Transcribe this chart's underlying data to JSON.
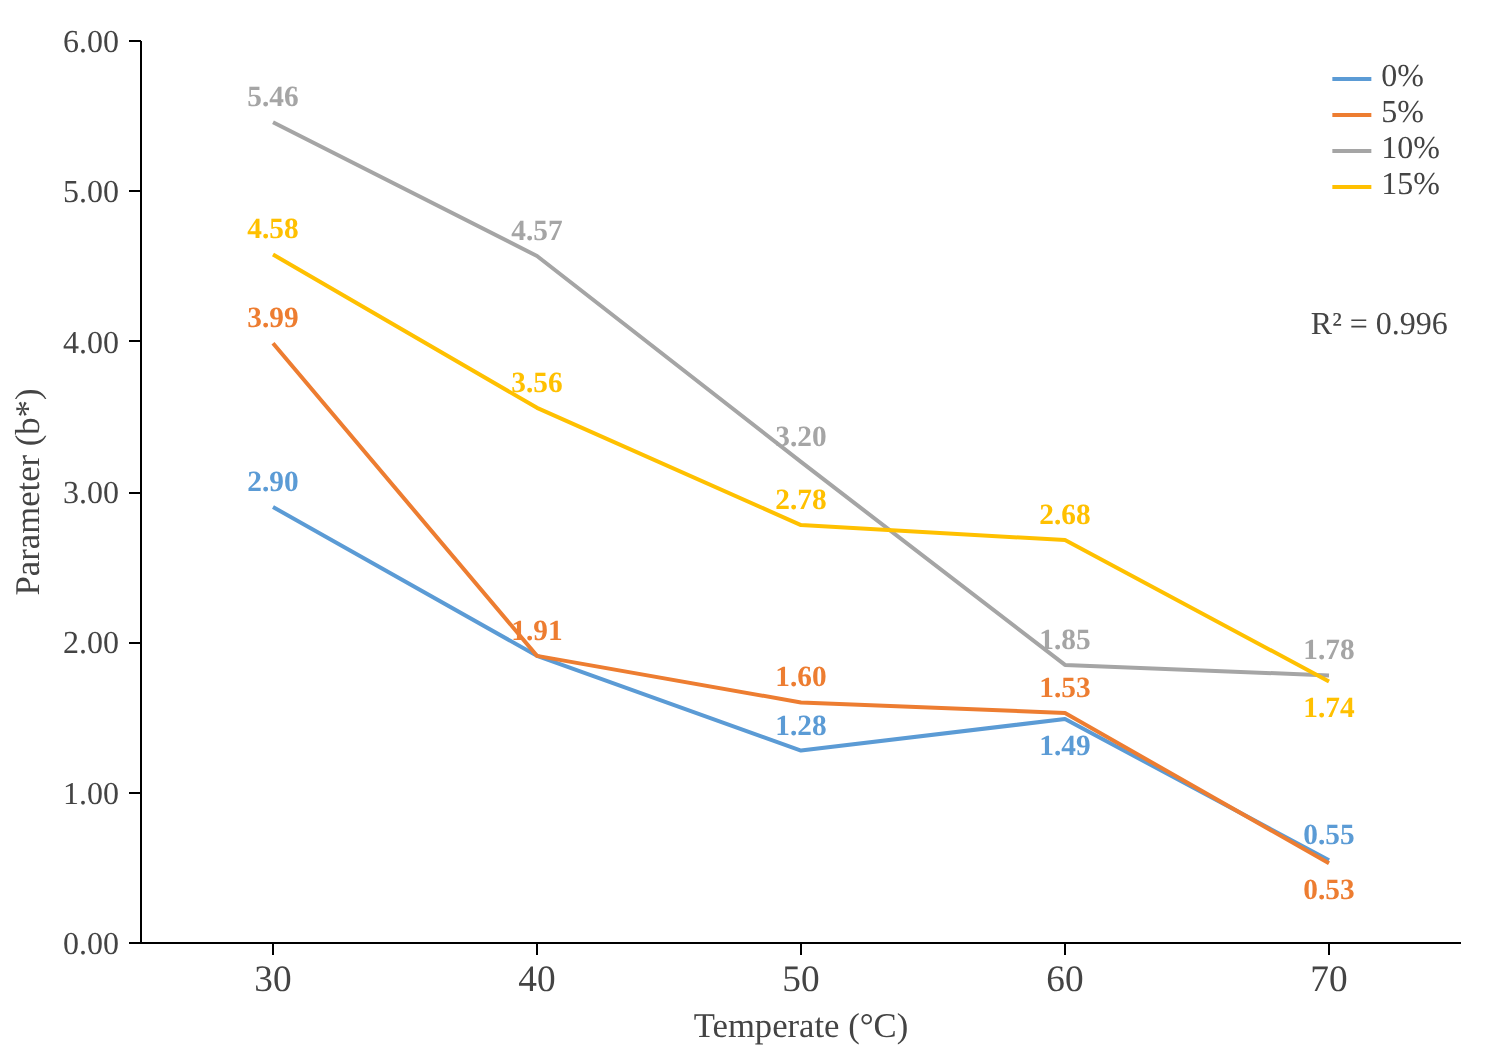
{
  "chart_data": {
    "type": "line",
    "xlabel": "Temperate (°C)",
    "ylabel": "Parameter (b*)",
    "categories": [
      "30",
      "40",
      "50",
      "60",
      "70"
    ],
    "series": [
      {
        "name": "0%",
        "color": "#5b9bd5",
        "values": [
          2.9,
          1.91,
          1.28,
          1.49,
          0.55
        ],
        "value_labels": [
          "2.90",
          null,
          "1.28",
          "1.49",
          "0.55"
        ]
      },
      {
        "name": "5%",
        "color": "#ed7d31",
        "values": [
          3.99,
          1.91,
          1.6,
          1.53,
          0.53
        ],
        "value_labels": [
          "3.99",
          "1.91",
          "1.60",
          "1.53",
          "0.53"
        ]
      },
      {
        "name": "10%",
        "color": "#a5a5a5",
        "values": [
          5.46,
          4.57,
          3.2,
          1.85,
          1.78
        ],
        "value_labels": [
          "5.46",
          "4.57",
          "3.20",
          "1.85",
          "1.78"
        ]
      },
      {
        "name": "15%",
        "color": "#ffc000",
        "values": [
          4.58,
          3.56,
          2.78,
          2.68,
          1.74
        ],
        "value_labels": [
          "4.58",
          "3.56",
          "2.78",
          "2.68",
          "1.74"
        ]
      }
    ],
    "ylim": [
      0,
      6
    ],
    "yticks": [
      {
        "value": 0,
        "label": "0.00"
      },
      {
        "value": 1,
        "label": "1.00"
      },
      {
        "value": 2,
        "label": "2.00"
      },
      {
        "value": 3,
        "label": "3.00"
      },
      {
        "value": 4,
        "label": "4.00"
      },
      {
        "value": 5,
        "label": "5.00"
      },
      {
        "value": 6,
        "label": "6.00"
      }
    ],
    "annotations": [
      "R² = 0.996"
    ],
    "legend": "top right",
    "grid": false,
    "line_style": "solid"
  }
}
